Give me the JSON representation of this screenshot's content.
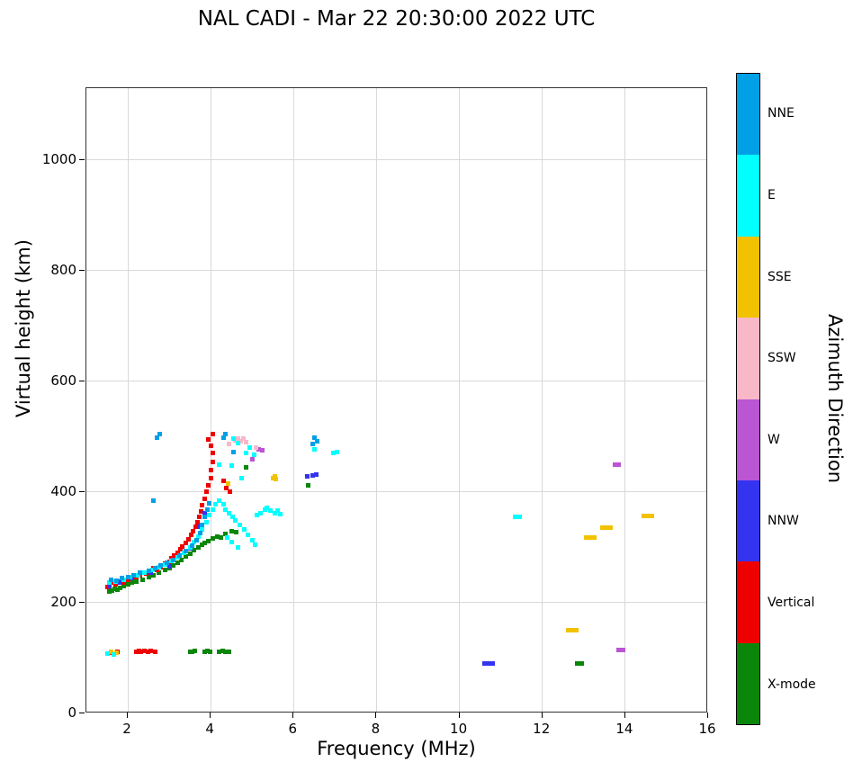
{
  "title": "NAL CADI - Mar 22 20:30:00 2022 UTC",
  "chart_data": {
    "type": "scatter",
    "title": "NAL CADI - Mar 22 20:30:00 2022 UTC",
    "xlabel": "Frequency (MHz)",
    "ylabel": "Virtual height (km)",
    "xlim": [
      1,
      16
    ],
    "ylim": [
      0,
      1130
    ],
    "xticks": [
      2,
      4,
      6,
      8,
      10,
      12,
      14,
      16
    ],
    "yticks": [
      0,
      200,
      400,
      600,
      800,
      1000
    ],
    "grid": true,
    "marker": "square",
    "legend_position": "right-colorbar",
    "colorbar": {
      "label": "Azimuth Direction",
      "entries": [
        {
          "label": "NNE",
          "color": "#00a0e6"
        },
        {
          "label": "E",
          "color": "#00ffff"
        },
        {
          "label": "SSE",
          "color": "#f2c200"
        },
        {
          "label": "SSW",
          "color": "#f8b8c8"
        },
        {
          "label": "W",
          "color": "#ba55d3"
        },
        {
          "label": "NNW",
          "color": "#3434f0"
        },
        {
          "label": "Vertical",
          "color": "#ee0000"
        },
        {
          "label": "X-mode",
          "color": "#0a870a"
        }
      ]
    },
    "series": [
      {
        "name": "X-mode",
        "color": "#0a870a",
        "points": [
          [
            1.55,
            220
          ],
          [
            1.62,
            222
          ],
          [
            1.68,
            225
          ],
          [
            1.75,
            224
          ],
          [
            1.82,
            227
          ],
          [
            1.9,
            230
          ],
          [
            2.0,
            233
          ],
          [
            2.1,
            236
          ],
          [
            2.2,
            238
          ],
          [
            2.35,
            242
          ],
          [
            2.5,
            247
          ],
          [
            2.62,
            250
          ],
          [
            2.75,
            255
          ],
          [
            2.9,
            260
          ],
          [
            3.0,
            263
          ],
          [
            3.1,
            267
          ],
          [
            3.2,
            272
          ],
          [
            3.3,
            277
          ],
          [
            3.4,
            283
          ],
          [
            3.5,
            289
          ],
          [
            3.6,
            295
          ],
          [
            3.7,
            300
          ],
          [
            3.78,
            305
          ],
          [
            3.86,
            308
          ],
          [
            3.95,
            312
          ],
          [
            4.05,
            316
          ],
          [
            4.15,
            320
          ],
          [
            4.25,
            318
          ],
          [
            4.35,
            324
          ],
          [
            4.5,
            330
          ],
          [
            4.62,
            328
          ],
          [
            3.5,
            112
          ],
          [
            3.56,
            112
          ],
          [
            3.62,
            113
          ],
          [
            3.85,
            112
          ],
          [
            3.92,
            113
          ],
          [
            3.98,
            112
          ],
          [
            4.2,
            112
          ],
          [
            4.28,
            113
          ],
          [
            4.36,
            112
          ],
          [
            4.45,
            112
          ],
          [
            12.85,
            90
          ],
          [
            12.95,
            90
          ],
          [
            6.35,
            412
          ],
          [
            4.85,
            445
          ]
        ]
      },
      {
        "name": "Vertical",
        "color": "#ee0000",
        "points": [
          [
            1.5,
            228
          ],
          [
            1.56,
            232
          ],
          [
            1.62,
            236
          ],
          [
            1.7,
            233
          ],
          [
            1.78,
            238
          ],
          [
            1.9,
            236
          ],
          [
            2.0,
            241
          ],
          [
            2.1,
            244
          ],
          [
            2.2,
            247
          ],
          [
            2.3,
            250
          ],
          [
            2.45,
            253
          ],
          [
            2.55,
            257
          ],
          [
            2.62,
            262
          ],
          [
            2.7,
            260
          ],
          [
            2.8,
            265
          ],
          [
            2.9,
            270
          ],
          [
            3.0,
            274
          ],
          [
            3.06,
            280
          ],
          [
            3.12,
            286
          ],
          [
            3.2,
            290
          ],
          [
            3.26,
            296
          ],
          [
            3.32,
            302
          ],
          [
            3.4,
            308
          ],
          [
            3.46,
            315
          ],
          [
            3.52,
            322
          ],
          [
            3.58,
            330
          ],
          [
            3.64,
            338
          ],
          [
            3.68,
            346
          ],
          [
            3.72,
            355
          ],
          [
            3.76,
            365
          ],
          [
            3.8,
            376
          ],
          [
            3.85,
            388
          ],
          [
            3.9,
            400
          ],
          [
            3.95,
            412
          ],
          [
            4.0,
            425
          ],
          [
            4.0,
            440
          ],
          [
            4.05,
            455
          ],
          [
            4.05,
            470
          ],
          [
            4.0,
            483
          ],
          [
            3.95,
            495
          ],
          [
            4.05,
            505
          ],
          [
            4.3,
            420
          ],
          [
            4.38,
            408
          ],
          [
            4.46,
            400
          ],
          [
            2.2,
            112
          ],
          [
            2.26,
            113
          ],
          [
            2.32,
            112
          ],
          [
            2.4,
            113
          ],
          [
            2.48,
            112
          ],
          [
            2.56,
            113
          ],
          [
            2.65,
            112
          ],
          [
            1.6,
            110
          ],
          [
            1.75,
            111
          ]
        ]
      },
      {
        "name": "NNW",
        "color": "#3434f0",
        "points": [
          [
            1.55,
            230
          ],
          [
            1.8,
            236
          ],
          [
            2.1,
            244
          ],
          [
            2.55,
            254
          ],
          [
            3.0,
            266
          ],
          [
            3.5,
            298
          ],
          [
            3.75,
            338
          ],
          [
            3.85,
            362
          ],
          [
            10.6,
            90
          ],
          [
            10.7,
            90
          ],
          [
            10.8,
            90
          ],
          [
            6.55,
            432
          ],
          [
            6.45,
            430
          ],
          [
            6.32,
            428
          ]
        ]
      },
      {
        "name": "W",
        "color": "#ba55d3",
        "points": [
          [
            5.15,
            478
          ],
          [
            5.25,
            476
          ],
          [
            13.75,
            450
          ],
          [
            13.85,
            450
          ],
          [
            13.85,
            115
          ],
          [
            13.95,
            115
          ],
          [
            5.0,
            460
          ]
        ]
      },
      {
        "name": "SSW",
        "color": "#f8b8c8",
        "points": [
          [
            4.6,
            493
          ],
          [
            4.66,
            496
          ],
          [
            4.72,
            492
          ],
          [
            4.78,
            497
          ],
          [
            5.1,
            480
          ],
          [
            4.45,
            487
          ],
          [
            4.85,
            490
          ]
        ]
      },
      {
        "name": "SSE",
        "color": "#f2c200",
        "points": [
          [
            1.6,
            112
          ],
          [
            1.72,
            110
          ],
          [
            5.5,
            425
          ],
          [
            5.58,
            423
          ],
          [
            5.54,
            428
          ],
          [
            12.62,
            150
          ],
          [
            12.72,
            150
          ],
          [
            12.82,
            150
          ],
          [
            13.05,
            318
          ],
          [
            13.15,
            318
          ],
          [
            13.25,
            318
          ],
          [
            13.45,
            335
          ],
          [
            13.55,
            336
          ],
          [
            13.65,
            335
          ],
          [
            14.45,
            357
          ],
          [
            14.55,
            357
          ],
          [
            14.65,
            357
          ],
          [
            4.42,
            415
          ]
        ]
      },
      {
        "name": "E",
        "color": "#00ffff",
        "points": [
          [
            1.55,
            236
          ],
          [
            1.7,
            238
          ],
          [
            1.9,
            242
          ],
          [
            2.05,
            246
          ],
          [
            2.25,
            250
          ],
          [
            2.4,
            254
          ],
          [
            2.6,
            259
          ],
          [
            2.75,
            264
          ],
          [
            2.9,
            269
          ],
          [
            3.05,
            275
          ],
          [
            3.2,
            282
          ],
          [
            3.35,
            290
          ],
          [
            3.5,
            300
          ],
          [
            3.6,
            310
          ],
          [
            3.7,
            320
          ],
          [
            3.8,
            332
          ],
          [
            3.9,
            345
          ],
          [
            3.96,
            358
          ],
          [
            4.05,
            368
          ],
          [
            4.12,
            378
          ],
          [
            4.2,
            385
          ],
          [
            4.3,
            378
          ],
          [
            4.36,
            368
          ],
          [
            4.45,
            362
          ],
          [
            4.52,
            355
          ],
          [
            4.6,
            348
          ],
          [
            4.7,
            340
          ],
          [
            4.8,
            332
          ],
          [
            4.9,
            322
          ],
          [
            5.0,
            313
          ],
          [
            5.06,
            305
          ],
          [
            4.65,
            300
          ],
          [
            4.5,
            310
          ],
          [
            4.4,
            318
          ],
          [
            5.12,
            358
          ],
          [
            5.2,
            362
          ],
          [
            5.3,
            368
          ],
          [
            5.36,
            372
          ],
          [
            5.45,
            366
          ],
          [
            5.55,
            362
          ],
          [
            5.62,
            366
          ],
          [
            5.68,
            360
          ],
          [
            4.85,
            470
          ],
          [
            4.95,
            480
          ],
          [
            5.05,
            468
          ],
          [
            4.65,
            488
          ],
          [
            6.5,
            478
          ],
          [
            6.95,
            470
          ],
          [
            7.05,
            472
          ],
          [
            11.35,
            355
          ],
          [
            11.45,
            355
          ],
          [
            4.5,
            448
          ],
          [
            4.75,
            425
          ],
          [
            4.2,
            450
          ],
          [
            4.56,
            497
          ],
          [
            1.5,
            108
          ],
          [
            1.66,
            107
          ]
        ]
      },
      {
        "name": "NNE",
        "color": "#00a0e6",
        "points": [
          [
            1.6,
            242
          ],
          [
            1.72,
            240
          ],
          [
            1.85,
            244
          ],
          [
            2.0,
            247
          ],
          [
            2.15,
            250
          ],
          [
            2.3,
            254
          ],
          [
            2.5,
            258
          ],
          [
            2.65,
            262
          ],
          [
            2.8,
            267
          ],
          [
            2.95,
            272
          ],
          [
            3.1,
            278
          ],
          [
            3.25,
            285
          ],
          [
            3.4,
            293
          ],
          [
            3.55,
            303
          ],
          [
            3.65,
            313
          ],
          [
            3.75,
            326
          ],
          [
            3.8,
            340
          ],
          [
            3.86,
            355
          ],
          [
            3.92,
            368
          ],
          [
            3.97,
            380
          ],
          [
            2.62,
            385
          ],
          [
            2.7,
            498
          ],
          [
            2.76,
            505
          ],
          [
            4.35,
            505
          ],
          [
            4.3,
            498
          ],
          [
            6.5,
            498
          ],
          [
            6.56,
            492
          ],
          [
            6.45,
            487
          ],
          [
            4.55,
            472
          ]
        ]
      }
    ]
  }
}
